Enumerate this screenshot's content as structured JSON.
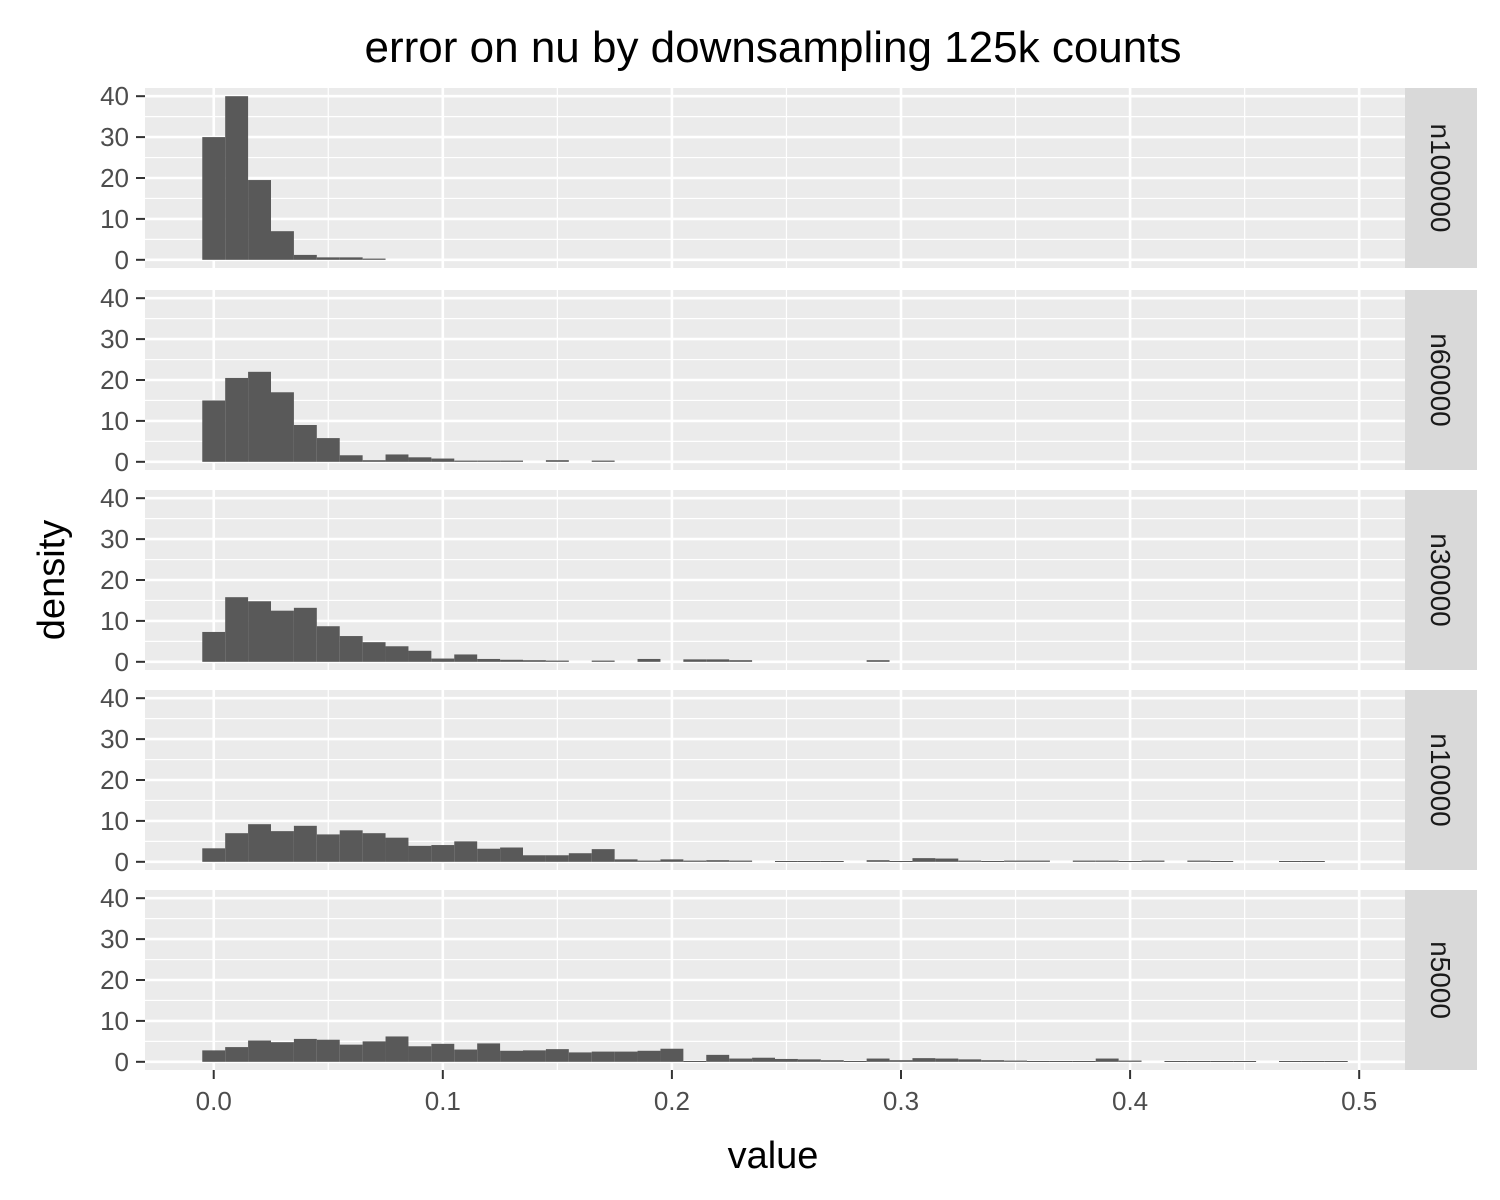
{
  "chart_data": {
    "type": "bar",
    "subtype": "faceted-histogram",
    "title": "error on nu by downsampling 125k counts",
    "xlabel": "value",
    "ylabel": "density",
    "xlim": [
      -0.03,
      0.52
    ],
    "ylim": [
      -2,
      42
    ],
    "x_ticks": [
      0.0,
      0.1,
      0.2,
      0.3,
      0.4,
      0.5
    ],
    "x_tick_labels": [
      "0.0",
      "0.1",
      "0.2",
      "0.3",
      "0.4",
      "0.5"
    ],
    "y_ticks": [
      0,
      10,
      20,
      30,
      40
    ],
    "y_tick_labels": [
      "0",
      "10",
      "20",
      "30",
      "40"
    ],
    "grid": true,
    "bin_start": -0.005,
    "bin_width": 0.01,
    "colors": {
      "panel_bg": "#ebebeb",
      "grid": "#ffffff",
      "bar": "#595959",
      "strip_bg": "#d9d9d9",
      "tick": "#333333"
    },
    "facets": [
      {
        "label": "n100000",
        "values": [
          30,
          40,
          19.5,
          7,
          1.2,
          0.6,
          0.6,
          0.3
        ]
      },
      {
        "label": "n60000",
        "values": [
          15,
          20.5,
          22,
          17,
          9,
          5.8,
          1.6,
          0.4,
          1.8,
          1.1,
          0.8,
          0.3,
          0.3,
          0.3,
          0,
          0.4,
          0,
          0.3
        ]
      },
      {
        "label": "n30000",
        "values": [
          7.3,
          15.8,
          14.8,
          12.5,
          13.2,
          8.7,
          6.3,
          4.8,
          3.8,
          2.7,
          0.8,
          1.8,
          0.7,
          0.5,
          0.4,
          0.3,
          0,
          0.3,
          0,
          0.7,
          0,
          0.6,
          0.6,
          0.4,
          0,
          0,
          0,
          0,
          0,
          0.4
        ]
      },
      {
        "label": "n10000",
        "values": [
          3.3,
          7,
          9.2,
          7.5,
          8.8,
          6.7,
          7.7,
          7,
          5.9,
          3.9,
          4.1,
          5,
          3.2,
          3.5,
          1.6,
          1.6,
          2.1,
          3.1,
          0.6,
          0.3,
          0.6,
          0.3,
          0.4,
          0.3,
          0,
          0.2,
          0.2,
          0.2,
          0,
          0.4,
          0.2,
          0.9,
          0.8,
          0.3,
          0.2,
          0.3,
          0.3,
          0,
          0.3,
          0.3,
          0.2,
          0.3,
          0,
          0.3,
          0.2,
          0,
          0,
          0.2,
          0.2,
          0
        ]
      },
      {
        "label": "n5000",
        "values": [
          2.8,
          3.6,
          5.2,
          4.8,
          5.6,
          5.4,
          4.2,
          5,
          6.2,
          3.8,
          4.4,
          3,
          4.5,
          2.7,
          2.8,
          3.1,
          2.3,
          2.5,
          2.5,
          2.7,
          3.2,
          0.2,
          1.7,
          0.8,
          1,
          0.7,
          0.6,
          0.4,
          0.2,
          0.8,
          0.4,
          0.9,
          0.8,
          0.6,
          0.4,
          0.3,
          0.2,
          0.2,
          0.2,
          0.8,
          0.3,
          0,
          0.2,
          0.2,
          0.2,
          0.2,
          0,
          0.2,
          0.2,
          0.2
        ]
      }
    ]
  }
}
